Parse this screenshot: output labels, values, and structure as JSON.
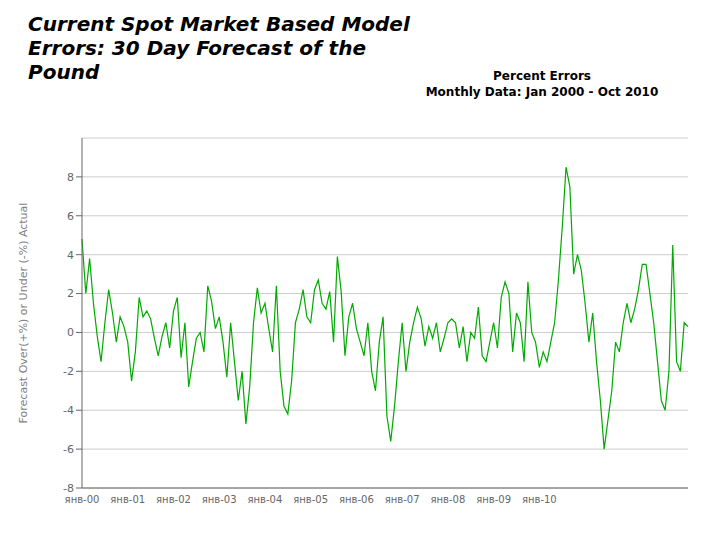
{
  "chart_data": {
    "type": "line",
    "title": "Current Spot Market Based Model\nErrors: 30 Day Forecast of the\nPound",
    "subtitle": "Percent Errors\nMonthly Data: Jan 2000 - Oct 2010",
    "y_label": "Forecast Over(+%) or Under (-%) Actual",
    "color": "#00AA00",
    "ylim": [
      -8,
      10
    ],
    "yticks": [
      -8,
      -6,
      -4,
      -2,
      0,
      2,
      4,
      6,
      8
    ],
    "grid": true,
    "categories": [
      "янв-00",
      null,
      null,
      null,
      null,
      null,
      null,
      null,
      null,
      null,
      null,
      null,
      "янв-01",
      null,
      null,
      null,
      null,
      null,
      null,
      null,
      null,
      null,
      null,
      null,
      "янв-02",
      null,
      null,
      null,
      null,
      null,
      null,
      null,
      null,
      null,
      null,
      null,
      "янв-03",
      null,
      null,
      null,
      null,
      null,
      null,
      null,
      null,
      null,
      null,
      null,
      "янв-04",
      null,
      null,
      null,
      null,
      null,
      null,
      null,
      null,
      null,
      null,
      null,
      "янв-05",
      null,
      null,
      null,
      null,
      null,
      null,
      null,
      null,
      null,
      null,
      null,
      "янв-06",
      null,
      null,
      null,
      null,
      null,
      null,
      null,
      null,
      null,
      null,
      null,
      "янв-07",
      null,
      null,
      null,
      null,
      null,
      null,
      null,
      null,
      null,
      null,
      null,
      "янв-08",
      null,
      null,
      null,
      null,
      null,
      null,
      null,
      null,
      null,
      null,
      null,
      "янв-09",
      null,
      null,
      null,
      null,
      null,
      null,
      null,
      null,
      null,
      null,
      null,
      "янв-10",
      null,
      null,
      null,
      null,
      null,
      null,
      null,
      null,
      null,
      null,
      null,
      null,
      null,
      null,
      null,
      null,
      null,
      null,
      null,
      null,
      null,
      null,
      null,
      null,
      null,
      null,
      null,
      null,
      null,
      null,
      null,
      null,
      null,
      null,
      null,
      null,
      null,
      null,
      null
    ],
    "values": [
      4.8,
      2.0,
      3.8,
      1.5,
      -0.2,
      -1.5,
      0.5,
      2.2,
      1.0,
      -0.5,
      0.8,
      0.3,
      -0.5,
      -2.5,
      -1.0,
      1.8,
      0.8,
      1.1,
      0.7,
      -0.3,
      -1.2,
      -0.2,
      0.5,
      -0.8,
      1.1,
      1.8,
      -1.3,
      0.5,
      -2.8,
      -1.5,
      -0.3,
      0.0,
      -1.0,
      2.4,
      1.6,
      0.2,
      0.8,
      -0.5,
      -2.3,
      0.5,
      -1.5,
      -3.5,
      -2.0,
      -4.7,
      -2.8,
      0.5,
      2.3,
      1.0,
      1.5,
      0.2,
      -1.0,
      2.4,
      -2.0,
      -3.8,
      -4.2,
      -2.5,
      0.5,
      1.2,
      2.2,
      0.8,
      0.5,
      2.2,
      2.7,
      1.5,
      1.2,
      2.1,
      -0.5,
      3.9,
      2.1,
      -1.2,
      0.8,
      1.5,
      0.2,
      -0.5,
      -1.2,
      0.5,
      -2.0,
      -3.0,
      -0.5,
      0.8,
      -4.3,
      -5.6,
      -3.8,
      -1.5,
      0.5,
      -2.0,
      -0.5,
      0.5,
      1.3,
      0.7,
      -0.7,
      0.3,
      -0.3,
      0.5,
      -1.0,
      -0.3,
      0.5,
      0.7,
      0.5,
      -0.8,
      0.3,
      -1.5,
      0.0,
      -0.3,
      1.3,
      -1.2,
      -1.5,
      -0.5,
      0.5,
      -0.8,
      1.8,
      2.6,
      2.0,
      -1.0,
      1.0,
      0.5,
      -1.5,
      2.6,
      0.0,
      -0.5,
      -1.8,
      -1.0,
      -1.5,
      -0.5,
      0.5,
      2.7,
      5.4,
      8.5,
      7.5,
      3.0,
      4.0,
      3.2,
      1.5,
      -0.5,
      1.0,
      -1.5,
      -3.5,
      -6.0,
      -4.5,
      -3.0,
      -0.5,
      -1.0,
      0.5,
      1.5,
      0.5,
      1.2,
      2.2,
      3.5,
      3.5,
      2.0,
      0.5,
      -1.5,
      -3.5,
      -4.0,
      -2.0,
      4.5,
      -1.5,
      -2.0,
      0.5,
      0.3
    ]
  }
}
